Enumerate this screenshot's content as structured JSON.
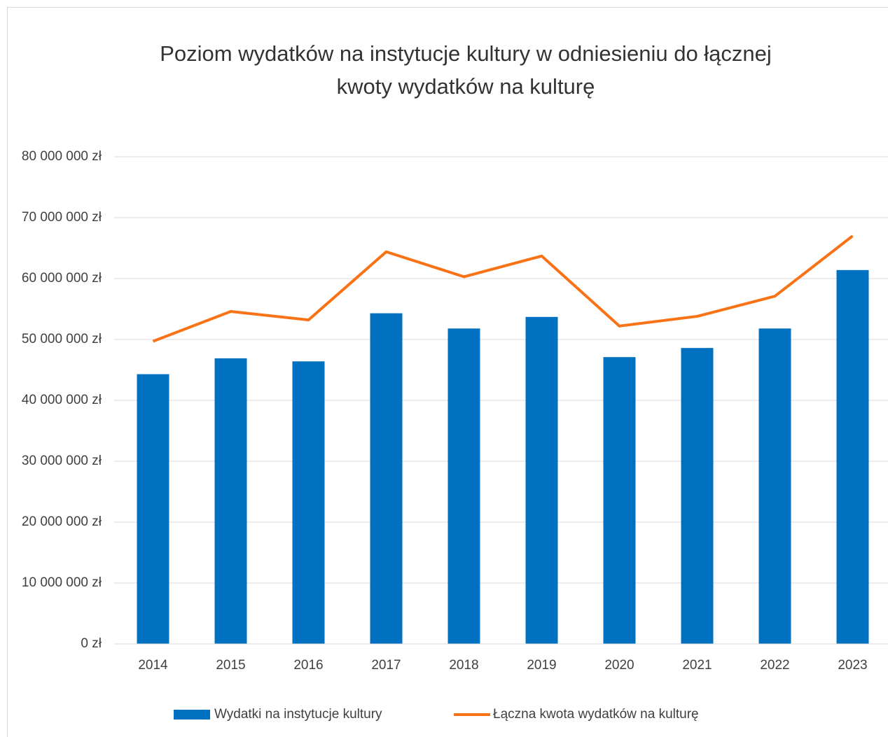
{
  "chart_data": {
    "type": "bar_line",
    "title": [
      "Poziom wydatków na instytucje kultury w odniesieniu do łącznej",
      "kwoty wydatków na kulturę"
    ],
    "categories": [
      "2014",
      "2015",
      "2016",
      "2017",
      "2018",
      "2019",
      "2020",
      "2021",
      "2022",
      "2023"
    ],
    "series": [
      {
        "name": "Wydatki na instytucje kultury",
        "type": "bar",
        "color": "#0070c0",
        "values": [
          44300000,
          46900000,
          46400000,
          54300000,
          51800000,
          53700000,
          47100000,
          48600000,
          51800000,
          61400000
        ]
      },
      {
        "name": "Łączna kwota wydatków na kulturę",
        "type": "line",
        "color": "#f97316",
        "values": [
          49700000,
          54600000,
          53200000,
          64400000,
          60300000,
          63700000,
          52200000,
          53800000,
          57100000,
          67000000
        ]
      }
    ],
    "ylim": [
      0,
      80000000
    ],
    "yticks": [
      {
        "value": 0,
        "label": "0 zł"
      },
      {
        "value": 10000000,
        "label": "10 000 000 zł"
      },
      {
        "value": 20000000,
        "label": "20 000 000 zł"
      },
      {
        "value": 30000000,
        "label": "30 000 000 zł"
      },
      {
        "value": 40000000,
        "label": "40 000 000 zł"
      },
      {
        "value": 50000000,
        "label": "50 000 000 zł"
      },
      {
        "value": 60000000,
        "label": "60 000 000 zł"
      },
      {
        "value": 70000000,
        "label": "70 000 000 zł"
      },
      {
        "value": 80000000,
        "label": "80 000 000 zł"
      }
    ],
    "grid": true,
    "legend": "bottom"
  }
}
